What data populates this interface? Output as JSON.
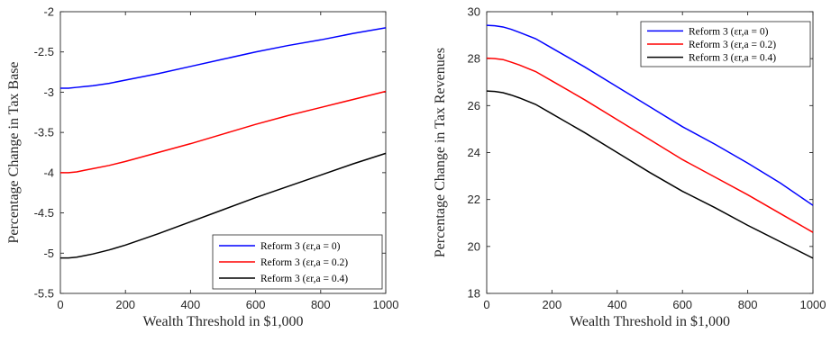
{
  "chart_data": [
    {
      "type": "line",
      "title": "",
      "xlabel": "Wealth Threshold in $1,000",
      "ylabel": "Percentage Change in Tax Base",
      "xlim": [
        0,
        1000
      ],
      "ylim": [
        -5.5,
        -2
      ],
      "xticks": [
        0,
        200,
        400,
        600,
        800,
        1000
      ],
      "xtick_labels": [
        "0",
        "200",
        "400",
        "600",
        "800",
        "1000"
      ],
      "yticks": [
        -5.5,
        -5,
        -4.5,
        -4,
        -3.5,
        -3,
        -2.5,
        -2
      ],
      "ytick_labels": [
        "-5.5",
        "-5",
        "-4.5",
        "-4",
        "-3.5",
        "-3",
        "-2.5",
        "-2"
      ],
      "grid": false,
      "legend_position": "bottom-right",
      "x": [
        0,
        25,
        50,
        75,
        100,
        150,
        200,
        300,
        400,
        500,
        600,
        700,
        800,
        900,
        1000
      ],
      "series": [
        {
          "name": "Reform 3 (εr,a = 0)",
          "color": "#0000ff",
          "values": [
            -2.95,
            -2.95,
            -2.94,
            -2.93,
            -2.92,
            -2.89,
            -2.85,
            -2.77,
            -2.68,
            -2.59,
            -2.5,
            -2.42,
            -2.35,
            -2.27,
            -2.2
          ]
        },
        {
          "name": "Reform 3 (εr,a = 0.2)",
          "color": "#ff0000",
          "values": [
            -4.0,
            -4.0,
            -3.99,
            -3.97,
            -3.95,
            -3.91,
            -3.86,
            -3.75,
            -3.64,
            -3.52,
            -3.4,
            -3.29,
            -3.19,
            -3.09,
            -2.99
          ]
        },
        {
          "name": "Reform 3 (εr,a = 0.4)",
          "color": "#000000",
          "values": [
            -5.06,
            -5.06,
            -5.05,
            -5.03,
            -5.01,
            -4.96,
            -4.9,
            -4.76,
            -4.61,
            -4.46,
            -4.31,
            -4.17,
            -4.03,
            -3.89,
            -3.76
          ]
        }
      ]
    },
    {
      "type": "line",
      "title": "",
      "xlabel": "Wealth Threshold in $1,000",
      "ylabel": "Percentage Change in Tax Revenues",
      "xlim": [
        0,
        1000
      ],
      "ylim": [
        18,
        30
      ],
      "xticks": [
        0,
        200,
        400,
        600,
        800,
        1000
      ],
      "xtick_labels": [
        "0",
        "200",
        "400",
        "600",
        "800",
        "1000"
      ],
      "yticks": [
        18,
        20,
        22,
        24,
        26,
        28,
        30
      ],
      "ytick_labels": [
        "18",
        "20",
        "22",
        "24",
        "26",
        "28",
        "30"
      ],
      "grid": false,
      "legend_position": "top-right",
      "x": [
        0,
        25,
        50,
        75,
        100,
        150,
        200,
        300,
        400,
        500,
        600,
        700,
        800,
        900,
        1000
      ],
      "series": [
        {
          "name": "Reform 3 (εr,a = 0)",
          "color": "#0000ff",
          "values": [
            29.42,
            29.4,
            29.35,
            29.25,
            29.12,
            28.85,
            28.45,
            27.65,
            26.8,
            25.95,
            25.1,
            24.35,
            23.55,
            22.7,
            21.75
          ]
        },
        {
          "name": "Reform 3 (εr,a = 0.2)",
          "color": "#ff0000",
          "values": [
            28.02,
            28.0,
            27.96,
            27.85,
            27.73,
            27.45,
            27.05,
            26.25,
            25.4,
            24.55,
            23.7,
            22.95,
            22.2,
            21.4,
            20.6
          ]
        },
        {
          "name": "Reform 3 (εr,a = 0.4)",
          "color": "#000000",
          "values": [
            26.62,
            26.6,
            26.55,
            26.45,
            26.33,
            26.05,
            25.65,
            24.85,
            24.0,
            23.15,
            22.35,
            21.65,
            20.9,
            20.2,
            19.5
          ]
        }
      ]
    }
  ]
}
